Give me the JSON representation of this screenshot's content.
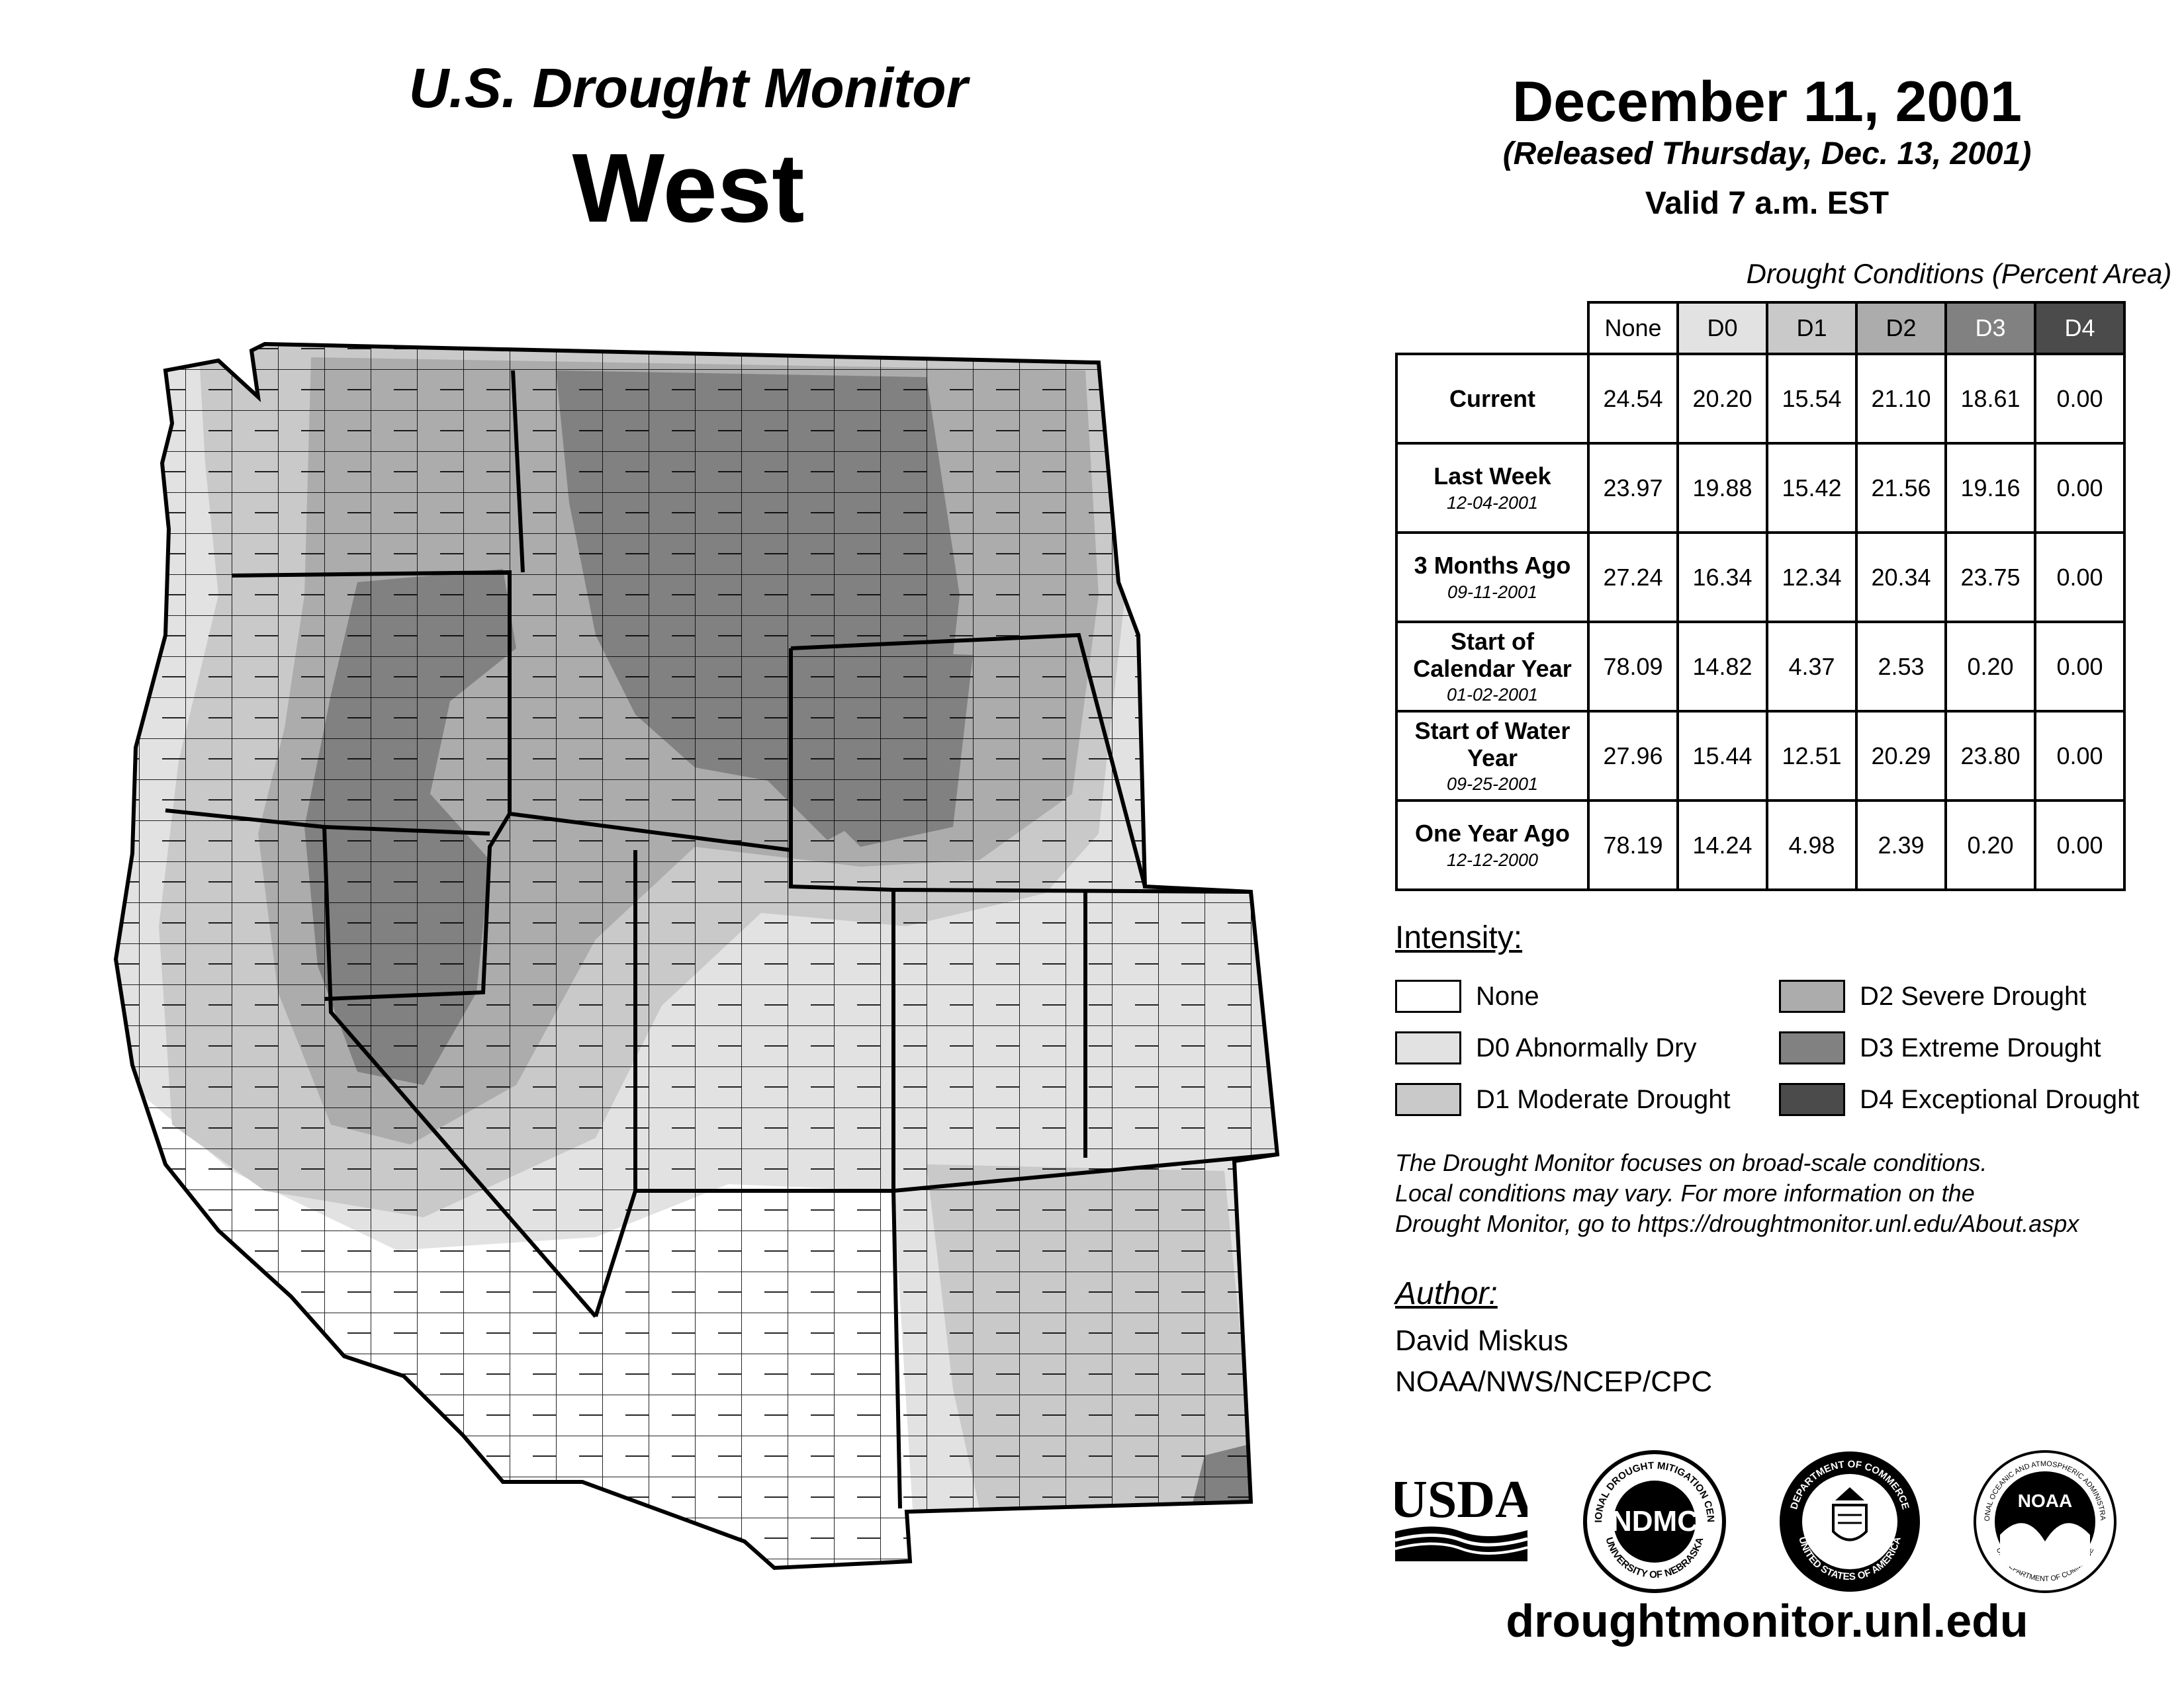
{
  "header": {
    "title_line1": "U.S. Drought Monitor",
    "title_line2": "West",
    "date": "December 11, 2001",
    "released": "(Released Thursday, Dec. 13, 2001)",
    "valid": "Valid 7 a.m. EST"
  },
  "table": {
    "caption": "Drought Conditions (Percent Area)",
    "columns": [
      "None",
      "D0",
      "D1",
      "D2",
      "D3",
      "D4"
    ],
    "rows": [
      {
        "label": "Current",
        "sublabel": "",
        "values": [
          "24.54",
          "20.20",
          "15.54",
          "21.10",
          "18.61",
          "0.00"
        ]
      },
      {
        "label": "Last Week",
        "sublabel": "12-04-2001",
        "values": [
          "23.97",
          "19.88",
          "15.42",
          "21.56",
          "19.16",
          "0.00"
        ]
      },
      {
        "label": "3 Months Ago",
        "sublabel": "09-11-2001",
        "values": [
          "27.24",
          "16.34",
          "12.34",
          "20.34",
          "23.75",
          "0.00"
        ]
      },
      {
        "label": "Start of Calendar Year",
        "sublabel": "01-02-2001",
        "values": [
          "78.09",
          "14.82",
          "4.37",
          "2.53",
          "0.20",
          "0.00"
        ]
      },
      {
        "label": "Start of Water Year",
        "sublabel": "09-25-2001",
        "values": [
          "27.96",
          "15.44",
          "12.51",
          "20.29",
          "23.80",
          "0.00"
        ]
      },
      {
        "label": "One Year Ago",
        "sublabel": "12-12-2000",
        "values": [
          "78.19",
          "14.24",
          "4.98",
          "2.39",
          "0.20",
          "0.00"
        ]
      }
    ]
  },
  "legend": {
    "title": "Intensity:",
    "items": [
      {
        "label": "None",
        "color": "#ffffff"
      },
      {
        "label": "D0 Abnormally Dry",
        "color": "#e2e2e2"
      },
      {
        "label": "D1 Moderate Drought",
        "color": "#c9c9c9"
      },
      {
        "label": "D2 Severe Drought",
        "color": "#acacac"
      },
      {
        "label": "D3 Extreme Drought",
        "color": "#818181"
      },
      {
        "label": "D4 Exceptional Drought",
        "color": "#4b4b4b"
      }
    ]
  },
  "note": {
    "line1": "The Drought Monitor focuses on broad-scale conditions.",
    "line2": "Local conditions may vary. For more information on the",
    "line3": "Drought Monitor, go to https://droughtmonitor.unl.edu/About.aspx"
  },
  "author": {
    "heading": "Author:",
    "name": "David Miskus",
    "org": "NOAA/NWS/NCEP/CPC"
  },
  "logos": {
    "usda": "USDA",
    "ndmc": "NDMC",
    "ndmc_ring_top": "NATIONAL DROUGHT MITIGATION CENTER",
    "ndmc_ring_bottom": "UNIVERSITY OF NEBRASKA",
    "commerce_ring_top": "DEPARTMENT OF COMMERCE",
    "commerce_ring_bottom": "UNITED STATES OF AMERICA",
    "noaa": "NOAA",
    "noaa_ring_top": "NATIONAL OCEANIC AND ATMOSPHERIC ADMINISTRATION",
    "noaa_ring_bottom": "U.S. DEPARTMENT OF COMMERCE"
  },
  "footer": {
    "url": "droughtmonitor.unl.edu"
  }
}
